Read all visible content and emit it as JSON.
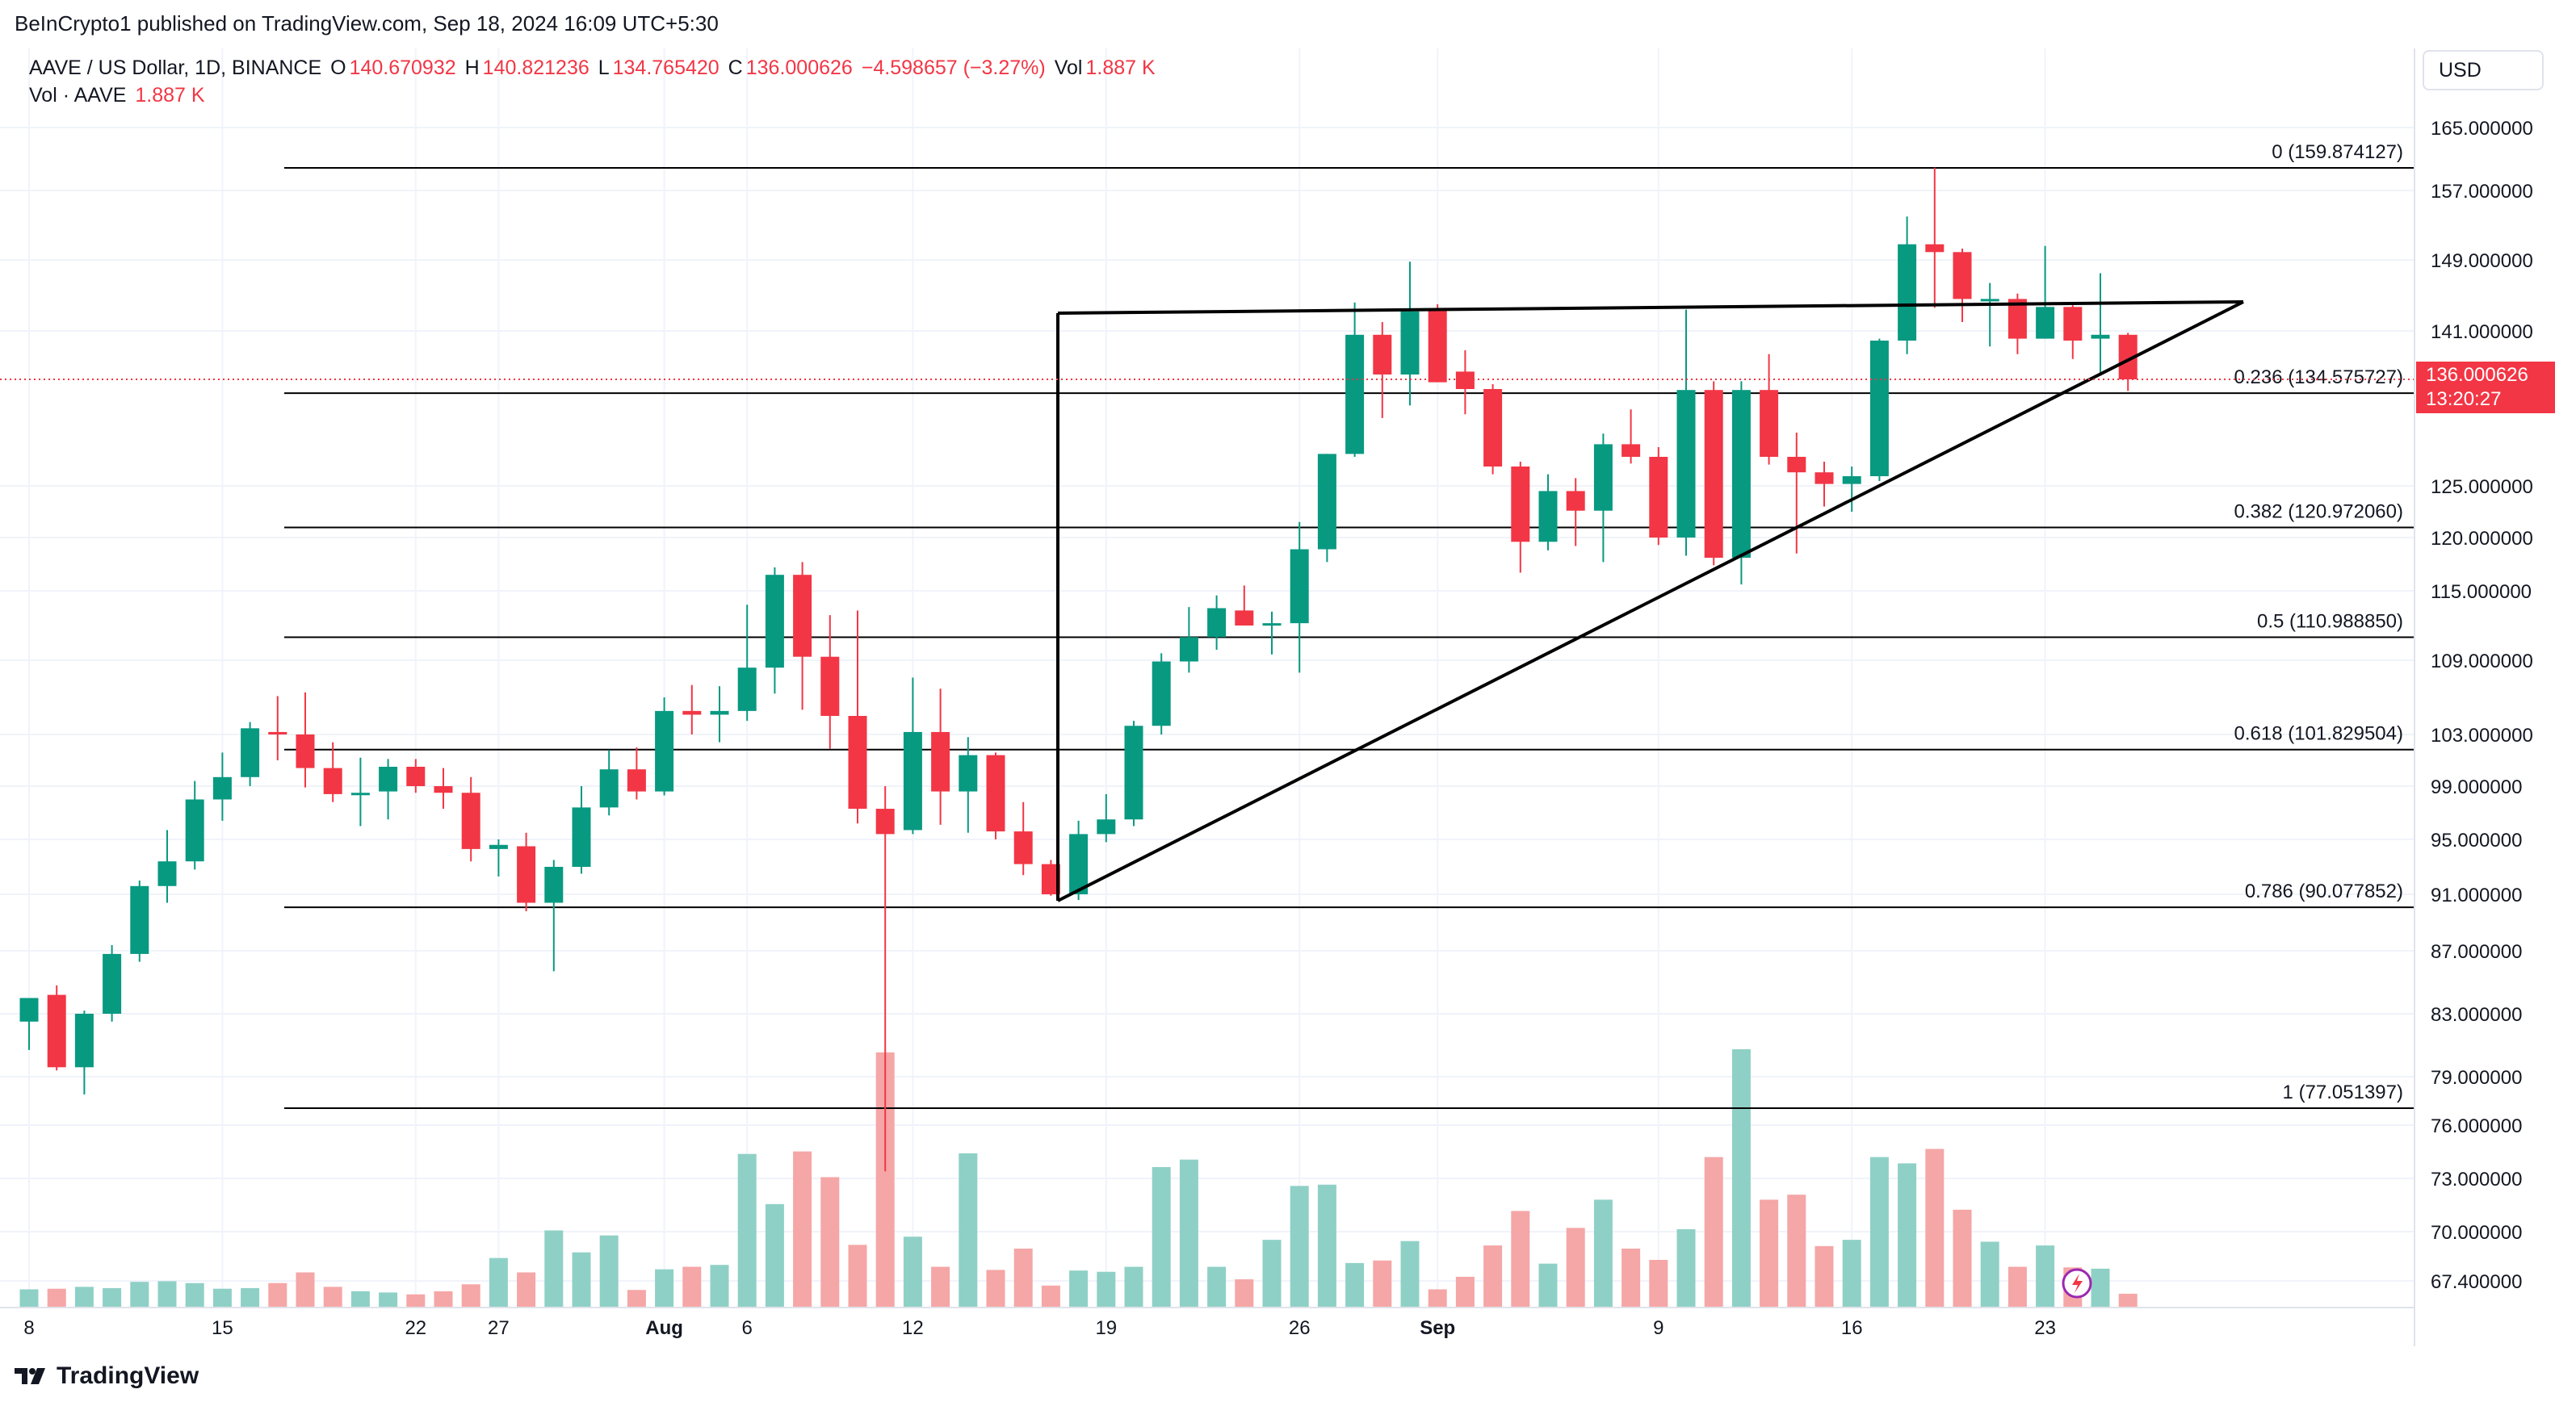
{
  "header": {
    "published": "BeInCrypto1 published on TradingView.com, Sep 18, 2024 16:09 UTC+5:30"
  },
  "legend": {
    "symbol": "AAVE / US Dollar, 1D, BINANCE",
    "o_label": "O",
    "o_value": "140.670932",
    "h_label": "H",
    "h_value": "140.821236",
    "l_label": "L",
    "l_value": "134.765420",
    "c_label": "C",
    "c_value": "136.000626",
    "change": "−4.598657 (−3.27%)",
    "vol_label": "Vol",
    "vol_value": "1.887 K",
    "vol_series": "Vol · AAVE",
    "vol_series_value": "1.887 K"
  },
  "currency_button": "USD",
  "price_tag": {
    "price": "136.000626",
    "countdown": "13:20:27"
  },
  "footer": {
    "brand": "TradingView"
  },
  "colors": {
    "up": "#089981",
    "down": "#f23645",
    "up_vol": "#8fd0c6",
    "down_vol": "#f5a6a6"
  },
  "chart_data": {
    "type": "candlestick",
    "title": "AAVE / US Dollar, 1D, BINANCE",
    "y_axis_labels": [
      "165.000000",
      "157.000000",
      "149.000000",
      "141.000000",
      "125.000000",
      "120.000000",
      "115.000000",
      "109.000000",
      "103.000000",
      "99.000000",
      "95.000000",
      "91.000000",
      "87.000000",
      "83.000000",
      "79.000000",
      "76.000000",
      "73.000000",
      "70.000000",
      "67.400000"
    ],
    "x_axis_labels": [
      "8",
      "15",
      "22",
      "27",
      "Aug",
      "6",
      "12",
      "19",
      "26",
      "Sep",
      "9",
      "16",
      "23"
    ],
    "fib_levels": [
      {
        "label": "0 (159.874127)",
        "value": 159.874127
      },
      {
        "label": "0.236 (134.575727)",
        "value": 134.575727
      },
      {
        "label": "0.382 (120.972060)",
        "value": 120.97206
      },
      {
        "label": "0.5 (110.988850)",
        "value": 110.98885
      },
      {
        "label": "0.618 (101.829504)",
        "value": 101.829504
      },
      {
        "label": "0.786 (90.077852)",
        "value": 90.077852
      },
      {
        "label": "1 (77.051397)",
        "value": 77.051397
      }
    ],
    "last_price": 136.000626,
    "candles": [
      {
        "o": 82.5,
        "h": 83.6,
        "l": 80.7,
        "c": 84.0,
        "v": 290
      },
      {
        "o": 84.2,
        "h": 84.8,
        "l": 79.4,
        "c": 79.6,
        "v": 300
      },
      {
        "o": 79.6,
        "h": 83.2,
        "l": 77.9,
        "c": 83.0,
        "v": 330
      },
      {
        "o": 83.0,
        "h": 87.4,
        "l": 82.5,
        "c": 86.8,
        "v": 310
      },
      {
        "o": 86.8,
        "h": 92.0,
        "l": 86.3,
        "c": 91.6,
        "v": 410
      },
      {
        "o": 91.6,
        "h": 95.7,
        "l": 90.4,
        "c": 93.4,
        "v": 420
      },
      {
        "o": 93.4,
        "h": 99.4,
        "l": 92.8,
        "c": 98.0,
        "v": 390
      },
      {
        "o": 98.0,
        "h": 101.6,
        "l": 96.4,
        "c": 99.7,
        "v": 300
      },
      {
        "o": 99.7,
        "h": 104.0,
        "l": 99.0,
        "c": 103.5,
        "v": 310
      },
      {
        "o": 103.2,
        "h": 106.1,
        "l": 101.0,
        "c": 103.0,
        "v": 390
      },
      {
        "o": 103.0,
        "h": 106.4,
        "l": 98.9,
        "c": 100.4,
        "v": 560
      },
      {
        "o": 100.4,
        "h": 102.4,
        "l": 97.8,
        "c": 98.4,
        "v": 330
      },
      {
        "o": 98.5,
        "h": 101.2,
        "l": 96.0,
        "c": 98.5,
        "v": 260
      },
      {
        "o": 98.6,
        "h": 101.1,
        "l": 96.5,
        "c": 100.5,
        "v": 240
      },
      {
        "o": 100.5,
        "h": 101.1,
        "l": 98.5,
        "c": 99.0,
        "v": 210
      },
      {
        "o": 99.0,
        "h": 100.4,
        "l": 97.3,
        "c": 98.5,
        "v": 260
      },
      {
        "o": 98.5,
        "h": 99.7,
        "l": 93.4,
        "c": 94.3,
        "v": 370
      },
      {
        "o": 94.3,
        "h": 95.0,
        "l": 92.3,
        "c": 94.6,
        "v": 790
      },
      {
        "o": 94.5,
        "h": 95.5,
        "l": 89.8,
        "c": 90.4,
        "v": 560
      },
      {
        "o": 90.4,
        "h": 93.5,
        "l": 85.7,
        "c": 93.0,
        "v": 1230
      },
      {
        "o": 93.0,
        "h": 99.0,
        "l": 92.5,
        "c": 97.4,
        "v": 880
      },
      {
        "o": 97.4,
        "h": 101.8,
        "l": 96.8,
        "c": 100.3,
        "v": 1150
      },
      {
        "o": 100.3,
        "h": 102.0,
        "l": 98.0,
        "c": 98.6,
        "v": 280
      },
      {
        "o": 98.6,
        "h": 106.0,
        "l": 98.3,
        "c": 104.9,
        "v": 610
      },
      {
        "o": 104.9,
        "h": 107.0,
        "l": 103.0,
        "c": 104.6,
        "v": 650
      },
      {
        "o": 104.6,
        "h": 106.9,
        "l": 102.4,
        "c": 104.9,
        "v": 680
      },
      {
        "o": 104.9,
        "h": 113.8,
        "l": 104.1,
        "c": 108.4,
        "v": 2450
      },
      {
        "o": 108.4,
        "h": 117.2,
        "l": 106.3,
        "c": 116.5,
        "v": 1650
      },
      {
        "o": 116.5,
        "h": 117.7,
        "l": 105.0,
        "c": 109.3,
        "v": 2490
      },
      {
        "o": 109.3,
        "h": 112.9,
        "l": 101.9,
        "c": 104.5,
        "v": 2080
      },
      {
        "o": 104.5,
        "h": 113.3,
        "l": 96.2,
        "c": 97.3,
        "v": 1000
      },
      {
        "o": 97.3,
        "h": 99.0,
        "l": 73.4,
        "c": 95.4,
        "v": 4070
      },
      {
        "o": 95.7,
        "h": 107.6,
        "l": 95.4,
        "c": 103.2,
        "v": 1130
      },
      {
        "o": 103.2,
        "h": 106.7,
        "l": 96.1,
        "c": 98.6,
        "v": 650
      },
      {
        "o": 98.6,
        "h": 102.8,
        "l": 95.5,
        "c": 101.4,
        "v": 2460
      },
      {
        "o": 101.4,
        "h": 101.6,
        "l": 95.0,
        "c": 95.6,
        "v": 600
      },
      {
        "o": 95.6,
        "h": 97.8,
        "l": 92.4,
        "c": 93.2,
        "v": 940
      },
      {
        "o": 93.2,
        "h": 93.5,
        "l": 90.9,
        "c": 91.0,
        "v": 350
      },
      {
        "o": 91.0,
        "h": 96.4,
        "l": 90.6,
        "c": 95.4,
        "v": 590
      },
      {
        "o": 95.4,
        "h": 98.4,
        "l": 94.8,
        "c": 96.5,
        "v": 570
      },
      {
        "o": 96.5,
        "h": 104.1,
        "l": 96.0,
        "c": 103.7,
        "v": 650
      },
      {
        "o": 103.7,
        "h": 109.6,
        "l": 103.0,
        "c": 108.9,
        "v": 2240
      },
      {
        "o": 108.9,
        "h": 113.6,
        "l": 108.0,
        "c": 111.0,
        "v": 2360
      },
      {
        "o": 111.0,
        "h": 114.6,
        "l": 109.9,
        "c": 113.5,
        "v": 650
      },
      {
        "o": 113.3,
        "h": 115.5,
        "l": 112.3,
        "c": 112.0,
        "v": 450
      },
      {
        "o": 112.0,
        "h": 113.2,
        "l": 109.5,
        "c": 112.2,
        "v": 1080
      },
      {
        "o": 112.2,
        "h": 121.5,
        "l": 108.0,
        "c": 118.9,
        "v": 1940
      },
      {
        "o": 118.9,
        "h": 128.3,
        "l": 117.7,
        "c": 128.3,
        "v": 1960
      },
      {
        "o": 128.3,
        "h": 144.2,
        "l": 128.0,
        "c": 140.6,
        "v": 710
      },
      {
        "o": 140.6,
        "h": 142.0,
        "l": 132.0,
        "c": 136.5,
        "v": 750
      },
      {
        "o": 136.5,
        "h": 148.8,
        "l": 133.3,
        "c": 143.2,
        "v": 1060
      },
      {
        "o": 143.3,
        "h": 144.0,
        "l": 135.8,
        "c": 135.7,
        "v": 290
      },
      {
        "o": 136.8,
        "h": 139.0,
        "l": 132.4,
        "c": 135.0,
        "v": 490
      },
      {
        "o": 135.0,
        "h": 135.5,
        "l": 126.2,
        "c": 127.0,
        "v": 990
      },
      {
        "o": 127.0,
        "h": 127.5,
        "l": 116.7,
        "c": 119.6,
        "v": 1540
      },
      {
        "o": 119.6,
        "h": 126.2,
        "l": 118.8,
        "c": 124.5,
        "v": 700
      },
      {
        "o": 124.5,
        "h": 125.8,
        "l": 119.2,
        "c": 122.6,
        "v": 1270
      },
      {
        "o": 122.6,
        "h": 130.4,
        "l": 117.7,
        "c": 129.3,
        "v": 1720
      },
      {
        "o": 129.3,
        "h": 132.9,
        "l": 127.3,
        "c": 128.0,
        "v": 940
      },
      {
        "o": 128.0,
        "h": 129.0,
        "l": 119.3,
        "c": 120.0,
        "v": 760
      },
      {
        "o": 120.0,
        "h": 143.4,
        "l": 118.3,
        "c": 134.9,
        "v": 1250
      },
      {
        "o": 134.9,
        "h": 135.8,
        "l": 117.4,
        "c": 118.1,
        "v": 2400
      },
      {
        "o": 118.1,
        "h": 135.8,
        "l": 115.6,
        "c": 134.9,
        "v": 4120
      },
      {
        "o": 134.9,
        "h": 138.6,
        "l": 127.2,
        "c": 128.0,
        "v": 1720
      },
      {
        "o": 128.0,
        "h": 130.5,
        "l": 118.5,
        "c": 126.4,
        "v": 1800
      },
      {
        "o": 126.4,
        "h": 127.5,
        "l": 123.0,
        "c": 125.2,
        "v": 980
      },
      {
        "o": 125.2,
        "h": 127.0,
        "l": 122.5,
        "c": 126.0,
        "v": 1080
      },
      {
        "o": 126.0,
        "h": 140.2,
        "l": 125.5,
        "c": 140.0,
        "v": 2400
      },
      {
        "o": 140.0,
        "h": 154.0,
        "l": 138.6,
        "c": 150.8,
        "v": 2300
      },
      {
        "o": 150.8,
        "h": 159.9,
        "l": 143.6,
        "c": 149.9,
        "v": 2530
      },
      {
        "o": 149.9,
        "h": 150.3,
        "l": 142.0,
        "c": 144.6,
        "v": 1560
      },
      {
        "o": 144.6,
        "h": 146.4,
        "l": 139.4,
        "c": 144.6,
        "v": 1050
      },
      {
        "o": 144.6,
        "h": 145.2,
        "l": 138.6,
        "c": 140.2,
        "v": 650
      },
      {
        "o": 140.2,
        "h": 150.6,
        "l": 140.2,
        "c": 143.7,
        "v": 990
      },
      {
        "o": 143.7,
        "h": 143.9,
        "l": 138.1,
        "c": 140.0,
        "v": 640
      },
      {
        "o": 140.2,
        "h": 147.5,
        "l": 136.6,
        "c": 140.6,
        "v": 620
      },
      {
        "o": 140.6,
        "h": 140.8,
        "l": 134.8,
        "c": 136.0,
        "v": 220
      }
    ]
  }
}
